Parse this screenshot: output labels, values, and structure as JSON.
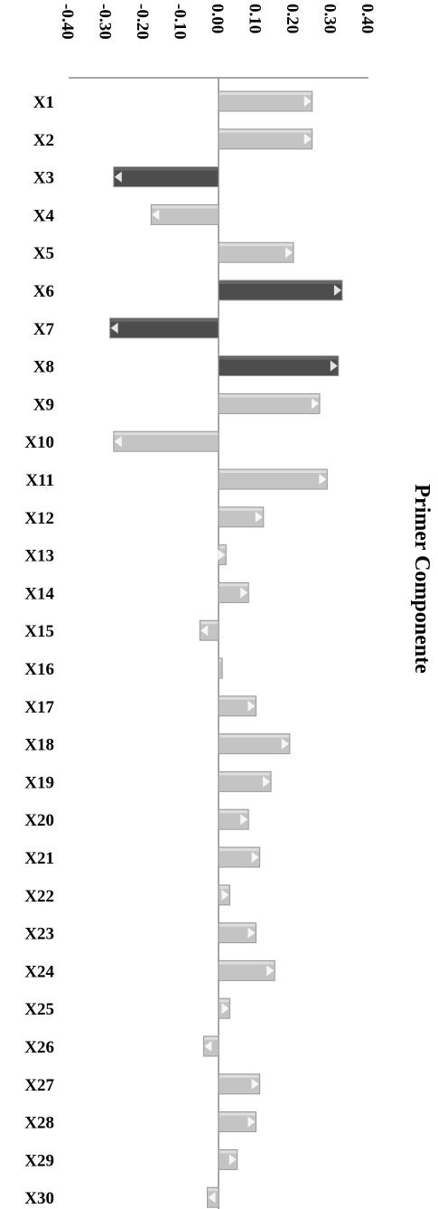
{
  "chart_data": {
    "type": "bar",
    "orientation": "horizontal",
    "title": "Primer Componente",
    "xlabel": "",
    "ylabel": "",
    "xlim": [
      -0.4,
      0.4
    ],
    "ticks": [
      "-0.40",
      "-0.30",
      "-0.20",
      "-0.10",
      "0.00",
      "0.10",
      "0.20",
      "0.30",
      "0.40"
    ],
    "tick_values": [
      -0.4,
      -0.3,
      -0.2,
      -0.1,
      0.0,
      0.1,
      0.2,
      0.3,
      0.4
    ],
    "grid": false,
    "categories": [
      "X1",
      "X2",
      "X3",
      "X4",
      "X5",
      "X6",
      "X7",
      "X8",
      "X9",
      "X10",
      "X11",
      "X12",
      "X13",
      "X14",
      "X15",
      "X16",
      "X17",
      "X18",
      "X19",
      "X20",
      "X21",
      "X22",
      "X23",
      "X24",
      "X25",
      "X26",
      "X27",
      "X28",
      "X29",
      "X30"
    ],
    "values": [
      0.25,
      0.25,
      -0.28,
      -0.18,
      0.2,
      0.33,
      -0.29,
      0.32,
      0.27,
      -0.28,
      0.29,
      0.12,
      0.02,
      0.08,
      -0.05,
      0.01,
      0.1,
      0.19,
      0.14,
      0.08,
      0.11,
      0.03,
      0.1,
      0.15,
      0.03,
      -0.04,
      0.11,
      0.1,
      0.05,
      -0.03
    ],
    "highlighted": [
      false,
      false,
      true,
      false,
      false,
      true,
      true,
      true,
      false,
      false,
      false,
      false,
      false,
      false,
      false,
      false,
      false,
      false,
      false,
      false,
      false,
      false,
      false,
      false,
      false,
      false,
      false,
      false,
      false,
      false
    ],
    "colors": {
      "normal": "#c4c4c4",
      "highlighted": "#4d4d4d",
      "axis": "#888888"
    }
  }
}
